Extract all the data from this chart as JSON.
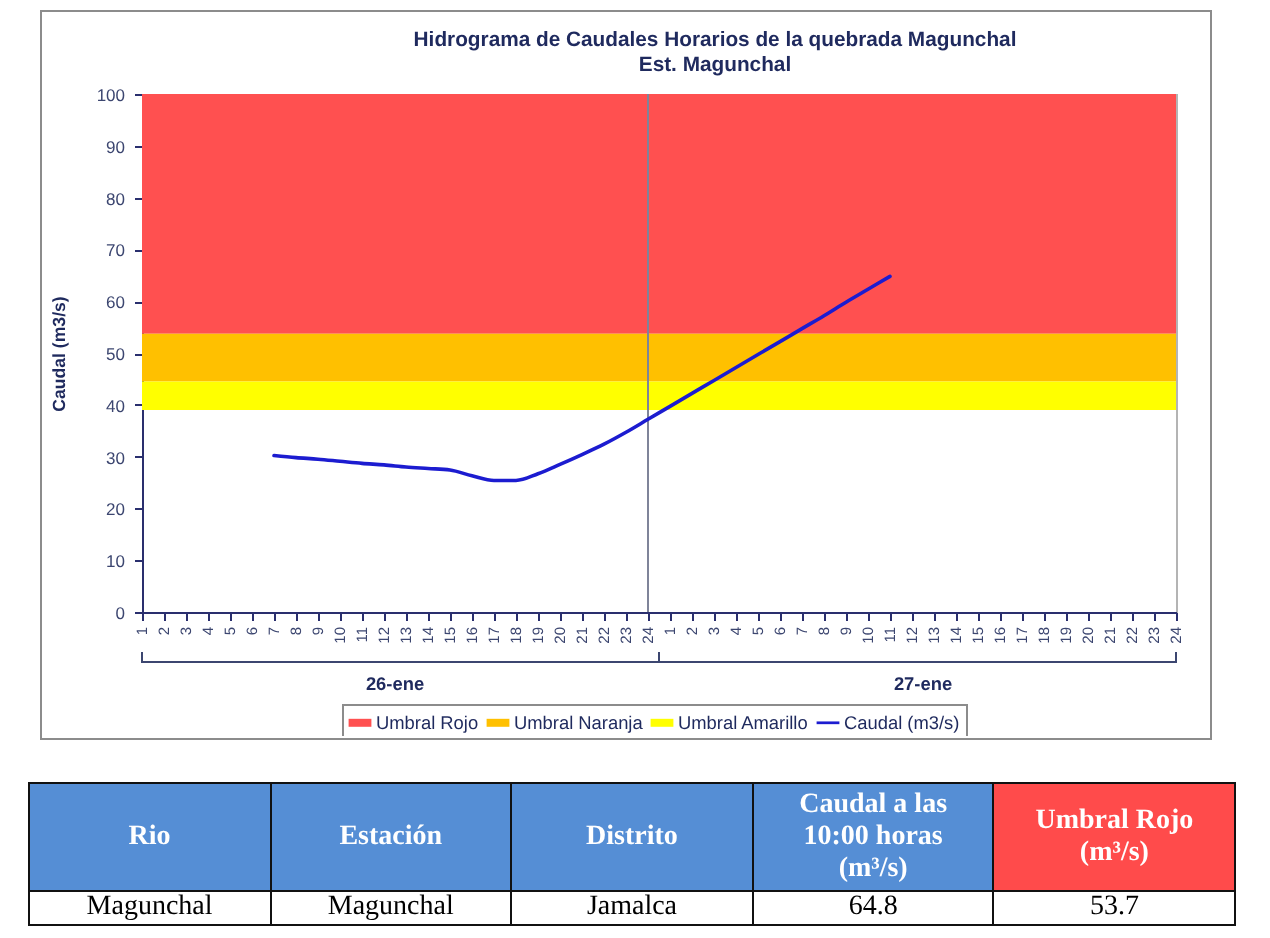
{
  "chart_data": [
    {
      "type": "line",
      "title": "Hidrograma de Caudales Horarios de la quebrada Magunchal",
      "subtitle": "Est. Magunchal",
      "ylabel": "Caudal (m3/s)",
      "categories": [
        "1",
        "2",
        "3",
        "4",
        "5",
        "6",
        "7",
        "8",
        "9",
        "10",
        "11",
        "12",
        "13",
        "14",
        "15",
        "16",
        "17",
        "18",
        "19",
        "20",
        "21",
        "22",
        "23",
        "24",
        "1",
        "2",
        "3",
        "4",
        "5",
        "6",
        "7",
        "8",
        "9",
        "10",
        "11",
        "12",
        "13",
        "14",
        "15",
        "16",
        "17",
        "18",
        "19",
        "20",
        "21",
        "22",
        "23",
        "24"
      ],
      "series": [
        {
          "name": "Caudal (m3/s)",
          "color": "#1c1cd0",
          "values": [
            null,
            null,
            null,
            null,
            null,
            null,
            30.2,
            29.8,
            29.5,
            29.1,
            28.7,
            28.4,
            28.0,
            27.7,
            27.4,
            26.3,
            25.4,
            25.4,
            26.7,
            28.5,
            30.4,
            32.4,
            34.7,
            37.2,
            39.7,
            42.2,
            44.7,
            47.2,
            49.7,
            52.2,
            54.7,
            57.2,
            59.8,
            62.3,
            64.8,
            null,
            null,
            null,
            null,
            null,
            null,
            null,
            null,
            null,
            null,
            null,
            null,
            null
          ]
        }
      ],
      "ylim": [
        0,
        100
      ],
      "yticks": [
        0,
        10,
        20,
        30,
        40,
        50,
        60,
        70,
        80,
        90,
        100
      ],
      "bands": [
        {
          "axis": "y",
          "from": 53.7,
          "to": 100,
          "label": "Umbral Rojo",
          "color": "#ff5050"
        },
        {
          "axis": "y",
          "from": 44.5,
          "to": 53.7,
          "label": "Umbral Naranja",
          "color": "#ffc000"
        },
        {
          "axis": "y",
          "from": 39,
          "to": 44.5,
          "label": "Umbral Amarillo",
          "color": "#ffff00"
        }
      ],
      "ref_lines": [
        {
          "axis": "x",
          "value": "24",
          "color": "#7f8499"
        }
      ],
      "annotations": [
        "26-ene",
        "27-ene"
      ],
      "legend": "bottom"
    },
    {
      "type": "other",
      "categories": [
        "Rio",
        "Estación",
        "Distrito",
        "Caudal a las 10:00 horas (m³/s)",
        "Umbral Rojo (m³/s)"
      ],
      "value_labels": [
        "Magunchal",
        "Magunchal",
        "Jamalca",
        "64.8",
        "53.7"
      ],
      "colors": [
        "#558ed5",
        "#558ed5",
        "#558ed5",
        "#558ed5",
        "#ff4b4b"
      ]
    }
  ]
}
